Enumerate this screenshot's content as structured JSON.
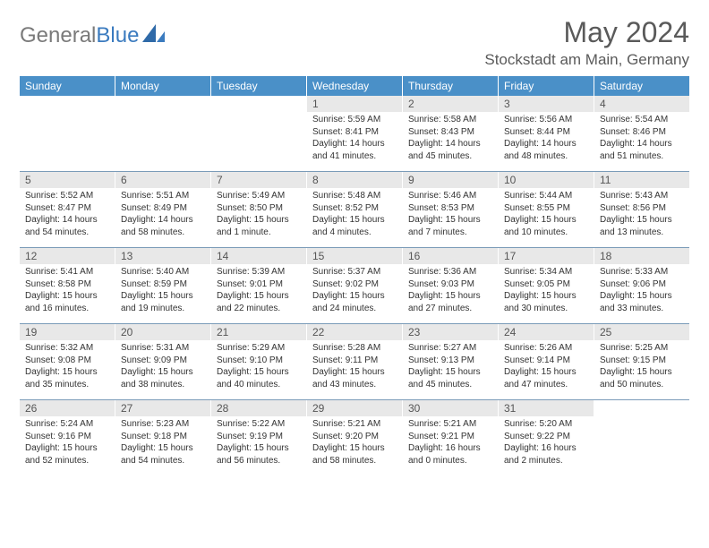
{
  "logo": {
    "text_gray": "General",
    "text_blue": "Blue"
  },
  "title": "May 2024",
  "location": "Stockstadt am Main, Germany",
  "colors": {
    "header_bg": "#4a90c8",
    "header_text": "#ffffff",
    "day_bar_bg": "#e8e8e8",
    "week_border": "#7a9bb8",
    "body_text": "#333333",
    "logo_gray": "#7a7a7a",
    "logo_blue": "#3b7bbf"
  },
  "weekdays": [
    "Sunday",
    "Monday",
    "Tuesday",
    "Wednesday",
    "Thursday",
    "Friday",
    "Saturday"
  ],
  "weeks": [
    [
      {
        "blank": true
      },
      {
        "blank": true
      },
      {
        "blank": true
      },
      {
        "num": "1",
        "sunrise": "Sunrise: 5:59 AM",
        "sunset": "Sunset: 8:41 PM",
        "d1": "Daylight: 14 hours",
        "d2": "and 41 minutes."
      },
      {
        "num": "2",
        "sunrise": "Sunrise: 5:58 AM",
        "sunset": "Sunset: 8:43 PM",
        "d1": "Daylight: 14 hours",
        "d2": "and 45 minutes."
      },
      {
        "num": "3",
        "sunrise": "Sunrise: 5:56 AM",
        "sunset": "Sunset: 8:44 PM",
        "d1": "Daylight: 14 hours",
        "d2": "and 48 minutes."
      },
      {
        "num": "4",
        "sunrise": "Sunrise: 5:54 AM",
        "sunset": "Sunset: 8:46 PM",
        "d1": "Daylight: 14 hours",
        "d2": "and 51 minutes."
      }
    ],
    [
      {
        "num": "5",
        "sunrise": "Sunrise: 5:52 AM",
        "sunset": "Sunset: 8:47 PM",
        "d1": "Daylight: 14 hours",
        "d2": "and 54 minutes."
      },
      {
        "num": "6",
        "sunrise": "Sunrise: 5:51 AM",
        "sunset": "Sunset: 8:49 PM",
        "d1": "Daylight: 14 hours",
        "d2": "and 58 minutes."
      },
      {
        "num": "7",
        "sunrise": "Sunrise: 5:49 AM",
        "sunset": "Sunset: 8:50 PM",
        "d1": "Daylight: 15 hours",
        "d2": "and 1 minute."
      },
      {
        "num": "8",
        "sunrise": "Sunrise: 5:48 AM",
        "sunset": "Sunset: 8:52 PM",
        "d1": "Daylight: 15 hours",
        "d2": "and 4 minutes."
      },
      {
        "num": "9",
        "sunrise": "Sunrise: 5:46 AM",
        "sunset": "Sunset: 8:53 PM",
        "d1": "Daylight: 15 hours",
        "d2": "and 7 minutes."
      },
      {
        "num": "10",
        "sunrise": "Sunrise: 5:44 AM",
        "sunset": "Sunset: 8:55 PM",
        "d1": "Daylight: 15 hours",
        "d2": "and 10 minutes."
      },
      {
        "num": "11",
        "sunrise": "Sunrise: 5:43 AM",
        "sunset": "Sunset: 8:56 PM",
        "d1": "Daylight: 15 hours",
        "d2": "and 13 minutes."
      }
    ],
    [
      {
        "num": "12",
        "sunrise": "Sunrise: 5:41 AM",
        "sunset": "Sunset: 8:58 PM",
        "d1": "Daylight: 15 hours",
        "d2": "and 16 minutes."
      },
      {
        "num": "13",
        "sunrise": "Sunrise: 5:40 AM",
        "sunset": "Sunset: 8:59 PM",
        "d1": "Daylight: 15 hours",
        "d2": "and 19 minutes."
      },
      {
        "num": "14",
        "sunrise": "Sunrise: 5:39 AM",
        "sunset": "Sunset: 9:01 PM",
        "d1": "Daylight: 15 hours",
        "d2": "and 22 minutes."
      },
      {
        "num": "15",
        "sunrise": "Sunrise: 5:37 AM",
        "sunset": "Sunset: 9:02 PM",
        "d1": "Daylight: 15 hours",
        "d2": "and 24 minutes."
      },
      {
        "num": "16",
        "sunrise": "Sunrise: 5:36 AM",
        "sunset": "Sunset: 9:03 PM",
        "d1": "Daylight: 15 hours",
        "d2": "and 27 minutes."
      },
      {
        "num": "17",
        "sunrise": "Sunrise: 5:34 AM",
        "sunset": "Sunset: 9:05 PM",
        "d1": "Daylight: 15 hours",
        "d2": "and 30 minutes."
      },
      {
        "num": "18",
        "sunrise": "Sunrise: 5:33 AM",
        "sunset": "Sunset: 9:06 PM",
        "d1": "Daylight: 15 hours",
        "d2": "and 33 minutes."
      }
    ],
    [
      {
        "num": "19",
        "sunrise": "Sunrise: 5:32 AM",
        "sunset": "Sunset: 9:08 PM",
        "d1": "Daylight: 15 hours",
        "d2": "and 35 minutes."
      },
      {
        "num": "20",
        "sunrise": "Sunrise: 5:31 AM",
        "sunset": "Sunset: 9:09 PM",
        "d1": "Daylight: 15 hours",
        "d2": "and 38 minutes."
      },
      {
        "num": "21",
        "sunrise": "Sunrise: 5:29 AM",
        "sunset": "Sunset: 9:10 PM",
        "d1": "Daylight: 15 hours",
        "d2": "and 40 minutes."
      },
      {
        "num": "22",
        "sunrise": "Sunrise: 5:28 AM",
        "sunset": "Sunset: 9:11 PM",
        "d1": "Daylight: 15 hours",
        "d2": "and 43 minutes."
      },
      {
        "num": "23",
        "sunrise": "Sunrise: 5:27 AM",
        "sunset": "Sunset: 9:13 PM",
        "d1": "Daylight: 15 hours",
        "d2": "and 45 minutes."
      },
      {
        "num": "24",
        "sunrise": "Sunrise: 5:26 AM",
        "sunset": "Sunset: 9:14 PM",
        "d1": "Daylight: 15 hours",
        "d2": "and 47 minutes."
      },
      {
        "num": "25",
        "sunrise": "Sunrise: 5:25 AM",
        "sunset": "Sunset: 9:15 PM",
        "d1": "Daylight: 15 hours",
        "d2": "and 50 minutes."
      }
    ],
    [
      {
        "num": "26",
        "sunrise": "Sunrise: 5:24 AM",
        "sunset": "Sunset: 9:16 PM",
        "d1": "Daylight: 15 hours",
        "d2": "and 52 minutes."
      },
      {
        "num": "27",
        "sunrise": "Sunrise: 5:23 AM",
        "sunset": "Sunset: 9:18 PM",
        "d1": "Daylight: 15 hours",
        "d2": "and 54 minutes."
      },
      {
        "num": "28",
        "sunrise": "Sunrise: 5:22 AM",
        "sunset": "Sunset: 9:19 PM",
        "d1": "Daylight: 15 hours",
        "d2": "and 56 minutes."
      },
      {
        "num": "29",
        "sunrise": "Sunrise: 5:21 AM",
        "sunset": "Sunset: 9:20 PM",
        "d1": "Daylight: 15 hours",
        "d2": "and 58 minutes."
      },
      {
        "num": "30",
        "sunrise": "Sunrise: 5:21 AM",
        "sunset": "Sunset: 9:21 PM",
        "d1": "Daylight: 16 hours",
        "d2": "and 0 minutes."
      },
      {
        "num": "31",
        "sunrise": "Sunrise: 5:20 AM",
        "sunset": "Sunset: 9:22 PM",
        "d1": "Daylight: 16 hours",
        "d2": "and 2 minutes."
      },
      {
        "blank": true
      }
    ]
  ]
}
